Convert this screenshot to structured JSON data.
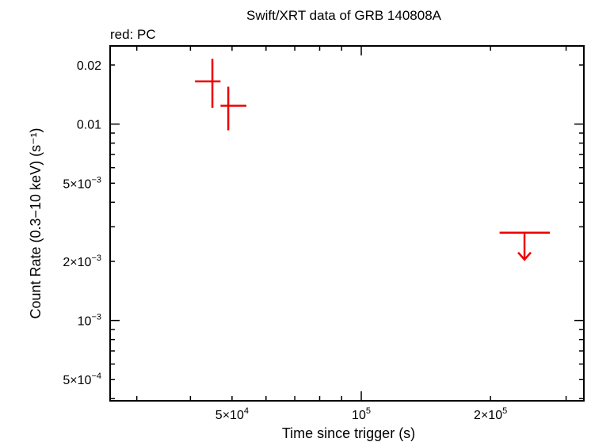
{
  "chart_data": {
    "type": "scatter",
    "title": "Swift/XRT data of GRB 140808A",
    "subtitle": "red: PC",
    "xlabel": "Time since trigger (s)",
    "ylabel": "Count Rate (0.3−10 keV) (s⁻¹)",
    "x_scale": "log",
    "y_scale": "log",
    "xlim": [
      26000,
      330000
    ],
    "ylim": [
      0.00039,
      0.025
    ],
    "grid": false,
    "series_color": "#ee0000",
    "x_tick_labels": [
      {
        "value": 50000,
        "mant": "5×10",
        "exp": "4"
      },
      {
        "value": 100000,
        "mant": "10",
        "exp": "5"
      },
      {
        "value": 200000,
        "mant": "2×10",
        "exp": "5"
      }
    ],
    "y_tick_labels": [
      {
        "value": 0.02,
        "mant": "0.02",
        "exp": ""
      },
      {
        "value": 0.01,
        "mant": "0.01",
        "exp": ""
      },
      {
        "value": 0.005,
        "mant": "5×10",
        "exp": "−3"
      },
      {
        "value": 0.002,
        "mant": "2×10",
        "exp": "−3"
      },
      {
        "value": 0.001,
        "mant": "10",
        "exp": "−3"
      },
      {
        "value": 0.0005,
        "mant": "5×10",
        "exp": "−4"
      }
    ],
    "points": [
      {
        "x": 45000,
        "x_lo": 41000,
        "x_hi": 47000,
        "y": 0.0165,
        "y_lo": 0.0121,
        "y_hi": 0.0215
      },
      {
        "x": 49000,
        "x_lo": 47000,
        "x_hi": 54000,
        "y": 0.0124,
        "y_lo": 0.0093,
        "y_hi": 0.0155
      }
    ],
    "upper_limits": [
      {
        "x": 240000,
        "x_lo": 210000,
        "x_hi": 275000,
        "y": 0.0028
      }
    ]
  }
}
